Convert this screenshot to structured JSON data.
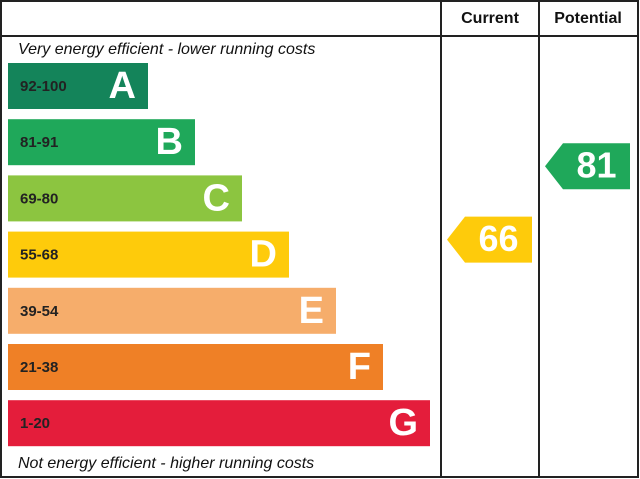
{
  "header": {
    "current": "Current",
    "potential": "Potential"
  },
  "top_note": "Very energy efficient - lower running costs",
  "bottom_note": "Not energy efficient - higher running costs",
  "bands": [
    {
      "range": "92-100",
      "letter": "A",
      "color": "#14845a"
    },
    {
      "range": "81-91",
      "letter": "B",
      "color": "#1fa85a"
    },
    {
      "range": "69-80",
      "letter": "C",
      "color": "#8cc540"
    },
    {
      "range": "55-68",
      "letter": "D",
      "color": "#fecb0b"
    },
    {
      "range": "39-54",
      "letter": "E",
      "color": "#f6ad6b"
    },
    {
      "range": "21-38",
      "letter": "F",
      "color": "#ef8026"
    },
    {
      "range": "1-20",
      "letter": "G",
      "color": "#e41d3b"
    }
  ],
  "current": {
    "value": 66,
    "color": "#fecb0b"
  },
  "potential": {
    "value": 81,
    "color": "#1fa85a"
  }
}
